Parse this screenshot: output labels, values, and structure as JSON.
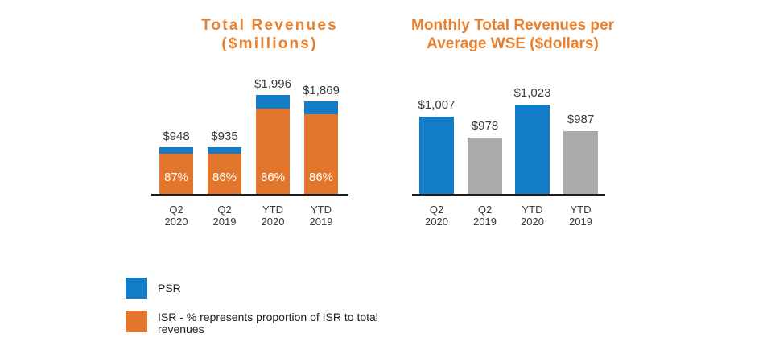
{
  "colors": {
    "background": "#FFFFFF",
    "title_orange": "#E8802D",
    "isr_orange": "#E2762D",
    "psr_blue": "#137CC8",
    "neutral_gray": "#ABABAB",
    "axis": "#1C1C1C",
    "label_text": "#3B3B3B",
    "pct_text": "#FFFFFF",
    "legend_text": "#212121"
  },
  "chart_data": [
    {
      "type": "bar",
      "variant": "stacked",
      "title": "Total Revenues ($millions)",
      "title_lines": [
        "Total Revenues",
        "($millions)"
      ],
      "categories": [
        "Q2 2020",
        "Q2 2019",
        "YTD 2020",
        "YTD 2019"
      ],
      "tick_lines": [
        [
          "Q2",
          "2020"
        ],
        [
          "Q2",
          "2019"
        ],
        [
          "YTD",
          "2020"
        ],
        [
          "YTD",
          "2019"
        ]
      ],
      "segments": [
        "PSR",
        "ISR"
      ],
      "totals": [
        948,
        935,
        1996,
        1869
      ],
      "total_labels": [
        "$948",
        "$935",
        "$1,996",
        "$1,869"
      ],
      "isr_pct": [
        87,
        86,
        86,
        86
      ],
      "isr_pct_labels": [
        "87%",
        "86%",
        "86%",
        "86%"
      ],
      "ylim": [
        0,
        2100
      ],
      "grid": false,
      "legend_position": "bottom-left"
    },
    {
      "type": "bar",
      "title": "Monthly Total Revenues per Average WSE ($dollars)",
      "title_lines": [
        "Monthly Total Revenues per",
        "Average WSE ($dollars)"
      ],
      "categories": [
        "Q2 2020",
        "Q2 2019",
        "YTD 2020",
        "YTD 2019"
      ],
      "tick_lines": [
        [
          "Q2",
          "2020"
        ],
        [
          "Q2",
          "2019"
        ],
        [
          "YTD",
          "2020"
        ],
        [
          "YTD",
          "2019"
        ]
      ],
      "values": [
        1007,
        978,
        1023,
        987
      ],
      "value_labels": [
        "$1,007",
        "$978",
        "$1,023",
        "$987"
      ],
      "bar_color_keys": [
        "psr_blue",
        "neutral_gray",
        "psr_blue",
        "neutral_gray"
      ],
      "ylim": [
        900,
        1060
      ],
      "grid": false
    }
  ],
  "legend": {
    "items": [
      {
        "label": "PSR",
        "color_key": "psr_blue"
      },
      {
        "label": "ISR - % represents proportion of ISR to total revenues",
        "color_key": "isr_orange"
      }
    ]
  }
}
